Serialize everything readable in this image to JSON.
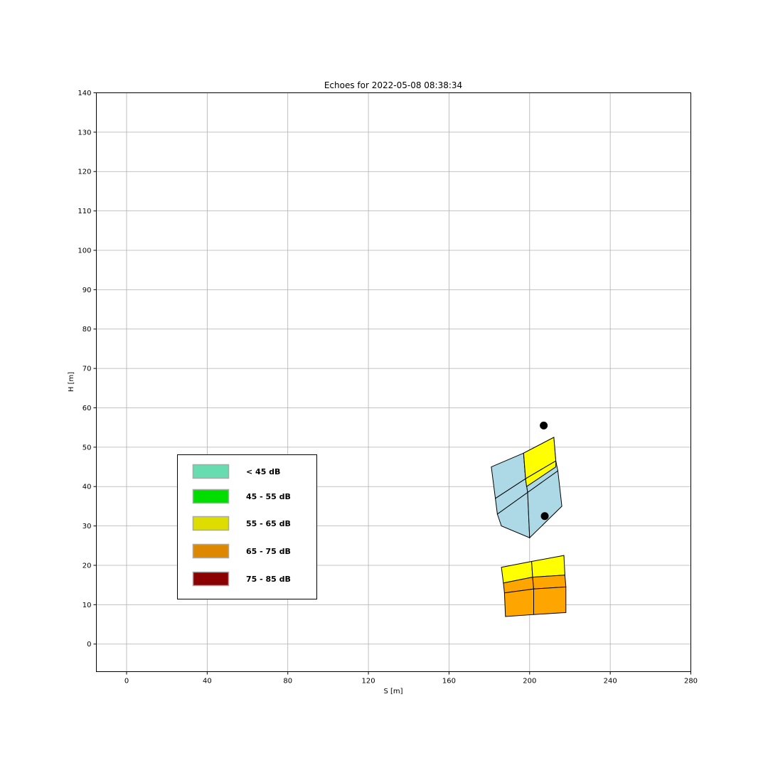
{
  "chart_data": {
    "type": "scatter",
    "title": "Echoes for 2022-05-08  08:38:34",
    "xlabel": "S [m]",
    "ylabel": "H [m]",
    "xlim": [
      -15,
      280
    ],
    "ylim": [
      -7,
      140
    ],
    "xticks": [
      0,
      40,
      80,
      120,
      160,
      200,
      240,
      280
    ],
    "yticks": [
      0,
      10,
      20,
      30,
      40,
      50,
      60,
      70,
      80,
      90,
      100,
      110,
      120,
      130,
      140
    ],
    "grid": true,
    "legend": {
      "placement": "left",
      "entries": [
        {
          "label": "< 45 dB",
          "color": "#66dcb0"
        },
        {
          "label": "45 - 55 dB",
          "color": "#00dd00"
        },
        {
          "label": "55 - 65 dB",
          "color": "#dddd00"
        },
        {
          "label": "65 - 75 dB",
          "color": "#dd8800"
        },
        {
          "label": "75 - 85 dB",
          "color": "#8b0000"
        }
      ]
    },
    "cells": [
      {
        "color": "#add8e6",
        "points": [
          [
            181,
            45
          ],
          [
            197,
            48.5
          ],
          [
            198,
            42
          ],
          [
            183,
            37
          ]
        ]
      },
      {
        "color": "#add8e6",
        "points": [
          [
            197,
            48.5
          ],
          [
            212,
            52.5
          ],
          [
            213,
            46.5
          ],
          [
            198,
            42
          ]
        ]
      },
      {
        "color": "#add8e6",
        "points": [
          [
            183,
            37
          ],
          [
            198,
            42
          ],
          [
            199,
            38.5
          ],
          [
            184,
            33
          ]
        ]
      },
      {
        "color": "#add8e6",
        "points": [
          [
            198,
            42
          ],
          [
            213,
            46.5
          ],
          [
            214,
            44
          ],
          [
            199,
            38.5
          ]
        ]
      },
      {
        "color": "#add8e6",
        "points": [
          [
            184,
            33
          ],
          [
            199,
            38.5
          ],
          [
            200,
            27
          ],
          [
            186,
            30
          ]
        ]
      },
      {
        "color": "#add8e6",
        "points": [
          [
            199,
            38.5
          ],
          [
            214,
            44
          ],
          [
            216,
            35
          ],
          [
            200,
            27
          ]
        ]
      },
      {
        "color": "#ffff00",
        "points": [
          [
            197,
            48.5
          ],
          [
            212,
            52.5
          ],
          [
            213,
            46.5
          ],
          [
            198,
            42
          ]
        ]
      },
      {
        "color": "#ffff00",
        "points": [
          [
            198,
            42
          ],
          [
            213,
            46.5
          ],
          [
            213,
            45
          ],
          [
            198.5,
            40
          ]
        ]
      },
      {
        "color": "#ffff00",
        "points": [
          [
            186,
            19.5
          ],
          [
            201,
            21
          ],
          [
            201.5,
            17
          ],
          [
            187,
            15.5
          ]
        ]
      },
      {
        "color": "#ffff00",
        "points": [
          [
            201,
            21
          ],
          [
            217,
            22.5
          ],
          [
            217.5,
            17.5
          ],
          [
            201.5,
            17
          ]
        ]
      },
      {
        "color": "#ffa500",
        "points": [
          [
            187,
            15.5
          ],
          [
            201.5,
            17
          ],
          [
            202,
            14
          ],
          [
            187.5,
            13
          ]
        ]
      },
      {
        "color": "#ffa500",
        "points": [
          [
            201.5,
            17
          ],
          [
            217.5,
            17.5
          ],
          [
            218,
            14.5
          ],
          [
            202,
            14
          ]
        ]
      },
      {
        "color": "#ffa500",
        "points": [
          [
            187.5,
            13
          ],
          [
            202,
            14
          ],
          [
            202,
            7.5
          ],
          [
            188,
            7
          ]
        ]
      },
      {
        "color": "#ffa500",
        "points": [
          [
            202,
            14
          ],
          [
            218,
            14.5
          ],
          [
            218,
            8
          ],
          [
            202,
            7.5
          ]
        ]
      }
    ],
    "points": [
      [
        207,
        55.5
      ],
      [
        207.5,
        32.5
      ]
    ]
  }
}
